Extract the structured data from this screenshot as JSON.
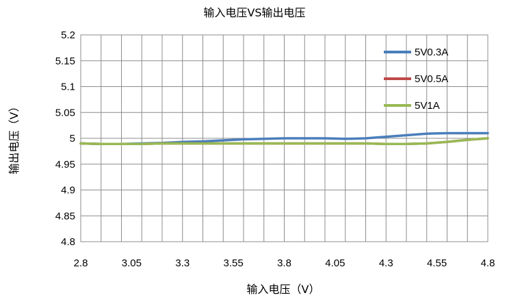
{
  "chart_data": {
    "type": "line",
    "title": "输入电压VS输出电压",
    "xlabel": "输入电压（V）",
    "ylabel": "输出电压（V）",
    "xlim": [
      2.8,
      4.8
    ],
    "ylim": [
      4.8,
      5.2
    ],
    "x_ticks": [
      "2.8",
      "3.05",
      "3.3",
      "3.55",
      "3.8",
      "4.05",
      "4.3",
      "4.55",
      "4.8"
    ],
    "y_ticks": [
      "4.8",
      "4.85",
      "4.9",
      "4.95",
      "5",
      "5.05",
      "5.1",
      "5.15",
      "5.2"
    ],
    "grid": true,
    "legend_position": "right",
    "x": [
      2.8,
      2.9,
      3.0,
      3.1,
      3.2,
      3.3,
      3.4,
      3.5,
      3.6,
      3.7,
      3.8,
      3.9,
      4.0,
      4.1,
      4.2,
      4.3,
      4.4,
      4.5,
      4.6,
      4.7,
      4.8
    ],
    "series": [
      {
        "name": "5V0.3A",
        "color": "#4a7ebb",
        "values": [
          4.99,
          4.989,
          4.989,
          4.99,
          4.991,
          4.993,
          4.994,
          4.996,
          4.998,
          4.999,
          5.0,
          5.0,
          5.0,
          4.999,
          5.0,
          5.003,
          5.006,
          5.009,
          5.01,
          5.01,
          5.01
        ]
      },
      {
        "name": "5V0.5A",
        "color": "#be4b48",
        "values": [
          4.99,
          4.989,
          4.989,
          4.989,
          4.99,
          4.99,
          4.99,
          4.99,
          4.99,
          4.99,
          4.99,
          4.99,
          4.99,
          4.99,
          4.99,
          4.989,
          4.989,
          4.99,
          4.993,
          4.997,
          5.0
        ]
      },
      {
        "name": "5V1A",
        "color": "#98b954",
        "values": [
          4.99,
          4.989,
          4.989,
          4.989,
          4.99,
          4.99,
          4.99,
          4.99,
          4.99,
          4.99,
          4.99,
          4.99,
          4.99,
          4.99,
          4.99,
          4.989,
          4.989,
          4.99,
          4.993,
          4.997,
          5.0
        ]
      }
    ]
  }
}
